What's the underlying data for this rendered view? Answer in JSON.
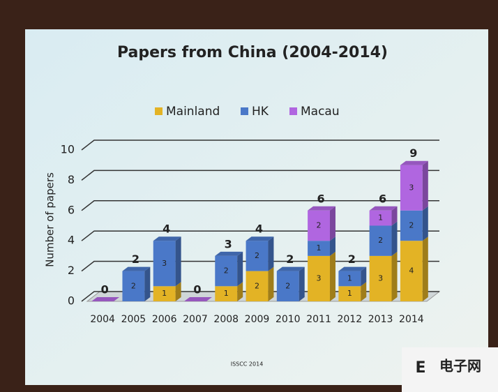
{
  "chart_data": {
    "type": "stacked-bar",
    "title": "Papers from China (2004-2014)",
    "y_label": "Number of papers",
    "categories": [
      "2004",
      "2005",
      "2006",
      "2007",
      "2008",
      "2009",
      "2010",
      "2011",
      "2012",
      "2013",
      "2014"
    ],
    "series": [
      {
        "name": "Mainland",
        "color": "#e3b325",
        "values": [
          0,
          0,
          1,
          0,
          1,
          2,
          0,
          3,
          1,
          3,
          4
        ]
      },
      {
        "name": "HK",
        "color": "#4a78c8",
        "values": [
          0,
          2,
          3,
          0,
          2,
          2,
          2,
          1,
          1,
          2,
          2
        ]
      },
      {
        "name": "Macau",
        "color": "#b066e0",
        "values": [
          0,
          0,
          0,
          0,
          0,
          0,
          0,
          2,
          0,
          1,
          3
        ]
      }
    ],
    "totals": [
      0,
      2,
      4,
      0,
      3,
      4,
      2,
      6,
      2,
      6,
      9
    ],
    "ylim": [
      0,
      10
    ],
    "yticks": [
      0,
      2,
      4,
      6,
      8,
      10
    ],
    "grid": true,
    "legend": "top",
    "footer": "ISSCC 2014"
  },
  "watermark": {
    "letter": "E",
    "text": "电子网"
  }
}
